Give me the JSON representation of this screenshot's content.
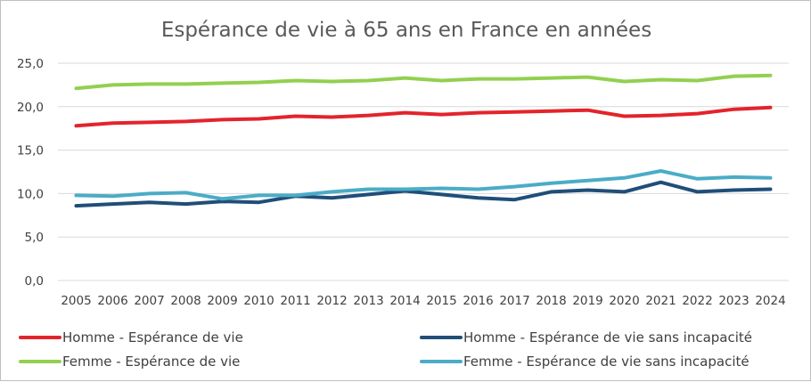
{
  "chart_data": {
    "type": "line",
    "title": "Espérance de vie à 65 ans en France en années",
    "xlabel": "",
    "ylabel": "",
    "ylim": [
      0,
      25
    ],
    "yticks": [
      "0,0",
      "5,0",
      "10,0",
      "15,0",
      "20,0",
      "25,0"
    ],
    "yticks_values": [
      0,
      5,
      10,
      15,
      20,
      25
    ],
    "grid": true,
    "legend_position": "bottom",
    "x": [
      "2005",
      "2006",
      "2007",
      "2008",
      "2009",
      "2010",
      "2011",
      "2012",
      "2013",
      "2014",
      "2015",
      "2016",
      "2017",
      "2018",
      "2019",
      "2020",
      "2021",
      "2022",
      "2023",
      "2024"
    ],
    "series": [
      {
        "name": "Homme - Espérance de vie",
        "color": "#e3242b",
        "values": [
          17.8,
          18.1,
          18.2,
          18.3,
          18.5,
          18.6,
          18.9,
          18.8,
          19.0,
          19.3,
          19.1,
          19.3,
          19.4,
          19.5,
          19.6,
          18.9,
          19.0,
          19.2,
          19.7,
          19.9
        ]
      },
      {
        "name": "Homme - Espérance de vie sans incapacité",
        "color": "#1f4e79",
        "values": [
          8.6,
          8.8,
          9.0,
          8.8,
          9.1,
          9.0,
          9.7,
          9.5,
          9.9,
          10.3,
          9.9,
          9.5,
          9.3,
          10.2,
          10.4,
          10.2,
          11.3,
          10.2,
          10.4,
          10.5
        ]
      },
      {
        "name": "Femme - Espérance de vie",
        "color": "#92d050",
        "values": [
          22.1,
          22.5,
          22.6,
          22.6,
          22.7,
          22.8,
          23.0,
          22.9,
          23.0,
          23.3,
          23.0,
          23.2,
          23.2,
          23.3,
          23.4,
          22.9,
          23.1,
          23.0,
          23.5,
          23.6
        ]
      },
      {
        "name": "Femme - Espérance de vie sans incapacité",
        "color": "#4bacc6",
        "values": [
          9.8,
          9.7,
          10.0,
          10.1,
          9.4,
          9.8,
          9.8,
          10.2,
          10.5,
          10.5,
          10.6,
          10.5,
          10.8,
          11.2,
          11.5,
          11.8,
          12.6,
          11.7,
          11.9,
          11.8
        ]
      }
    ]
  }
}
